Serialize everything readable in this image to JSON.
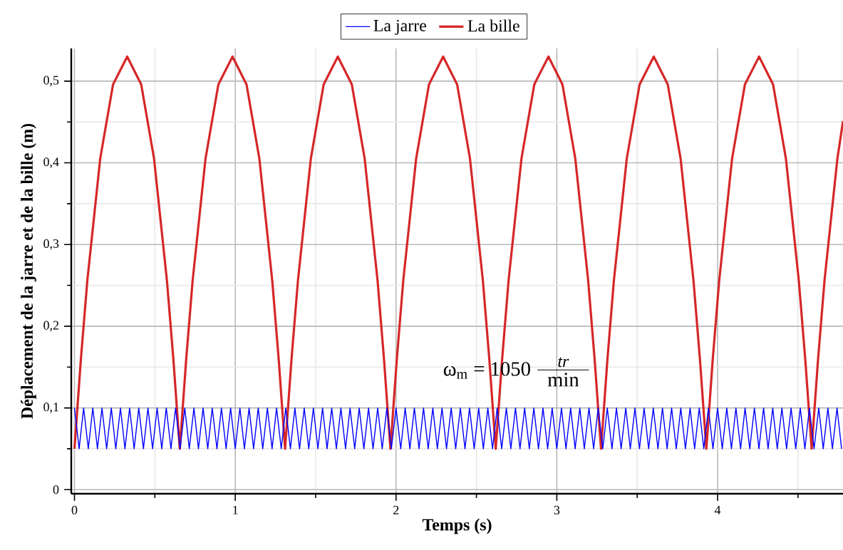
{
  "chart_data": {
    "type": "line",
    "xlabel": "Temps (s)",
    "ylabel": "Déplacement de la jarre et de la bille (m)",
    "xlim": [
      -0.02,
      4.78
    ],
    "ylim": [
      -0.005,
      0.54
    ],
    "xticks": [
      0,
      {
        "value": 0.5,
        "label": null
      },
      1,
      {
        "value": 1.5,
        "label": null
      },
      2,
      {
        "value": 2.5,
        "label": null
      },
      3,
      {
        "value": 3.5,
        "label": null
      },
      4,
      {
        "value": 4.5,
        "label": null
      }
    ],
    "yticks": [
      0,
      {
        "value": 0.05,
        "label": null
      },
      {
        "value": 0.1,
        "label": "0,1"
      },
      {
        "value": 0.15,
        "label": null
      },
      {
        "value": 0.2,
        "label": "0,2"
      },
      {
        "value": 0.25,
        "label": null
      },
      {
        "value": 0.3,
        "label": "0,3"
      },
      {
        "value": 0.35,
        "label": null
      },
      {
        "value": 0.4,
        "label": "0,4"
      },
      {
        "value": 0.45,
        "label": null
      },
      {
        "value": 0.5,
        "label": "0,5"
      }
    ],
    "grid": true,
    "legend": "top",
    "marker": "none",
    "line_style": "solid",
    "annotations": [
      "ω$_{m}$ = 1050",
      "tr",
      "min"
    ],
    "series": [
      {
        "name": "La jarre",
        "color": "#0000ff",
        "x": [
          0,
          0.029,
          0.057,
          0.086,
          0.114,
          0.143,
          0.171,
          0.2,
          0.229,
          0.257,
          0.286,
          0.314,
          0.343,
          0.371,
          0.4,
          0.429,
          0.457,
          0.486,
          0.514,
          0.543,
          0.571,
          0.6,
          0.629,
          0.657,
          0.686,
          0.714,
          0.743,
          0.771,
          0.8,
          0.829,
          0.857,
          0.886,
          0.914,
          0.943,
          0.971,
          1.0,
          1.029,
          1.057,
          1.086,
          1.114,
          1.143,
          1.171,
          1.2,
          1.229,
          1.257,
          1.286,
          1.314,
          1.343,
          1.371,
          1.4,
          1.429,
          1.457,
          1.486,
          1.514,
          1.543,
          1.571,
          1.6,
          1.629,
          1.657,
          1.686,
          1.714,
          1.743,
          1.771,
          1.8,
          1.829,
          1.857,
          1.886,
          1.914,
          1.943,
          1.971,
          2.0,
          2.029,
          2.057,
          2.086,
          2.114,
          2.143,
          2.171,
          2.2,
          2.229,
          2.257,
          2.286,
          2.314,
          2.343,
          2.371,
          2.4,
          2.429,
          2.457,
          2.486,
          2.514,
          2.543,
          2.571,
          2.6,
          2.629,
          2.657,
          2.686,
          2.714,
          2.743,
          2.771,
          2.8,
          2.829,
          2.857,
          2.886,
          2.914,
          2.943,
          2.971,
          3.0,
          3.029,
          3.057,
          3.086,
          3.114,
          3.143,
          3.171,
          3.2,
          3.229,
          3.257,
          3.286,
          3.314,
          3.343,
          3.371,
          3.4,
          3.429,
          3.457,
          3.486,
          3.514,
          3.543,
          3.571,
          3.6,
          3.629,
          3.657,
          3.686,
          3.714,
          3.743,
          3.771,
          3.8,
          3.829,
          3.857,
          3.886,
          3.914,
          3.943,
          3.971,
          4.0,
          4.029,
          4.057,
          4.086,
          4.114,
          4.143,
          4.171,
          4.2,
          4.229,
          4.257,
          4.286,
          4.314,
          4.343,
          4.371,
          4.4,
          4.429,
          4.457,
          4.486,
          4.514,
          4.543,
          4.571,
          4.6,
          4.629,
          4.657,
          4.686,
          4.714,
          4.743,
          4.771
        ],
        "values": [
          0.1,
          0.05,
          0.1,
          0.05,
          0.1,
          0.05,
          0.1,
          0.05,
          0.1,
          0.05,
          0.1,
          0.05,
          0.1,
          0.05,
          0.1,
          0.05,
          0.1,
          0.05,
          0.1,
          0.05,
          0.1,
          0.05,
          0.1,
          0.05,
          0.1,
          0.05,
          0.1,
          0.05,
          0.1,
          0.05,
          0.1,
          0.05,
          0.1,
          0.05,
          0.1,
          0.05,
          0.1,
          0.05,
          0.1,
          0.05,
          0.1,
          0.05,
          0.1,
          0.05,
          0.1,
          0.05,
          0.1,
          0.05,
          0.1,
          0.05,
          0.1,
          0.05,
          0.1,
          0.05,
          0.1,
          0.05,
          0.1,
          0.05,
          0.1,
          0.05,
          0.1,
          0.05,
          0.1,
          0.05,
          0.1,
          0.05,
          0.1,
          0.05,
          0.1,
          0.05,
          0.1,
          0.05,
          0.1,
          0.05,
          0.1,
          0.05,
          0.1,
          0.05,
          0.1,
          0.05,
          0.1,
          0.05,
          0.1,
          0.05,
          0.1,
          0.05,
          0.1,
          0.05,
          0.1,
          0.05,
          0.1,
          0.05,
          0.1,
          0.05,
          0.1,
          0.05,
          0.1,
          0.05,
          0.1,
          0.05,
          0.1,
          0.05,
          0.1,
          0.05,
          0.1,
          0.05,
          0.1,
          0.05,
          0.1,
          0.05,
          0.1,
          0.05,
          0.1,
          0.05,
          0.1,
          0.05,
          0.1,
          0.05,
          0.1,
          0.05,
          0.1,
          0.05,
          0.1,
          0.05,
          0.1,
          0.05,
          0.1,
          0.05,
          0.1,
          0.05,
          0.1,
          0.05,
          0.1,
          0.05,
          0.1,
          0.05,
          0.1,
          0.05,
          0.1,
          0.05,
          0.1,
          0.05,
          0.1,
          0.05,
          0.1,
          0.05,
          0.1,
          0.05,
          0.1,
          0.05,
          0.1,
          0.05,
          0.1,
          0.05,
          0.1,
          0.05,
          0.1,
          0.05,
          0.1,
          0.05,
          0.1,
          0.05,
          0.1,
          0.05,
          0.1,
          0.05,
          0.1,
          0.05
        ]
      },
      {
        "name": "La bille",
        "color": "#d62728",
        "x": [
          0,
          0.04,
          0.08,
          0.16,
          0.24,
          0.328,
          0.415,
          0.495,
          0.575,
          0.615,
          0.655,
          0.695,
          0.735,
          0.815,
          0.895,
          0.983,
          1.07,
          1.15,
          1.23,
          1.27,
          1.31,
          1.35,
          1.39,
          1.47,
          1.55,
          1.638,
          1.725,
          1.805,
          1.885,
          1.925,
          1.965,
          2.005,
          2.045,
          2.125,
          2.205,
          2.293,
          2.38,
          2.46,
          2.54,
          2.58,
          2.62,
          2.66,
          2.7,
          2.78,
          2.86,
          2.948,
          3.035,
          3.115,
          3.195,
          3.235,
          3.275,
          3.315,
          3.355,
          3.435,
          3.515,
          3.603,
          3.69,
          3.77,
          3.85,
          3.89,
          3.93,
          3.97,
          4.01,
          4.09,
          4.17,
          4.258,
          4.345,
          4.425,
          4.505,
          4.545,
          4.585,
          4.625,
          4.665,
          4.745,
          4.78
        ],
        "values": [
          0.05,
          0.16,
          0.256,
          0.405,
          0.496,
          0.53,
          0.496,
          0.405,
          0.256,
          0.16,
          0.05,
          0.16,
          0.256,
          0.405,
          0.496,
          0.53,
          0.496,
          0.405,
          0.256,
          0.16,
          0.05,
          0.16,
          0.256,
          0.405,
          0.496,
          0.53,
          0.496,
          0.405,
          0.256,
          0.16,
          0.05,
          0.16,
          0.256,
          0.405,
          0.496,
          0.53,
          0.496,
          0.405,
          0.256,
          0.16,
          0.05,
          0.16,
          0.256,
          0.405,
          0.496,
          0.53,
          0.496,
          0.405,
          0.256,
          0.16,
          0.05,
          0.16,
          0.256,
          0.405,
          0.496,
          0.53,
          0.496,
          0.405,
          0.256,
          0.16,
          0.05,
          0.16,
          0.256,
          0.405,
          0.496,
          0.53,
          0.496,
          0.405,
          0.256,
          0.16,
          0.05,
          0.16,
          0.256,
          0.405,
          0.451
        ]
      }
    ]
  }
}
